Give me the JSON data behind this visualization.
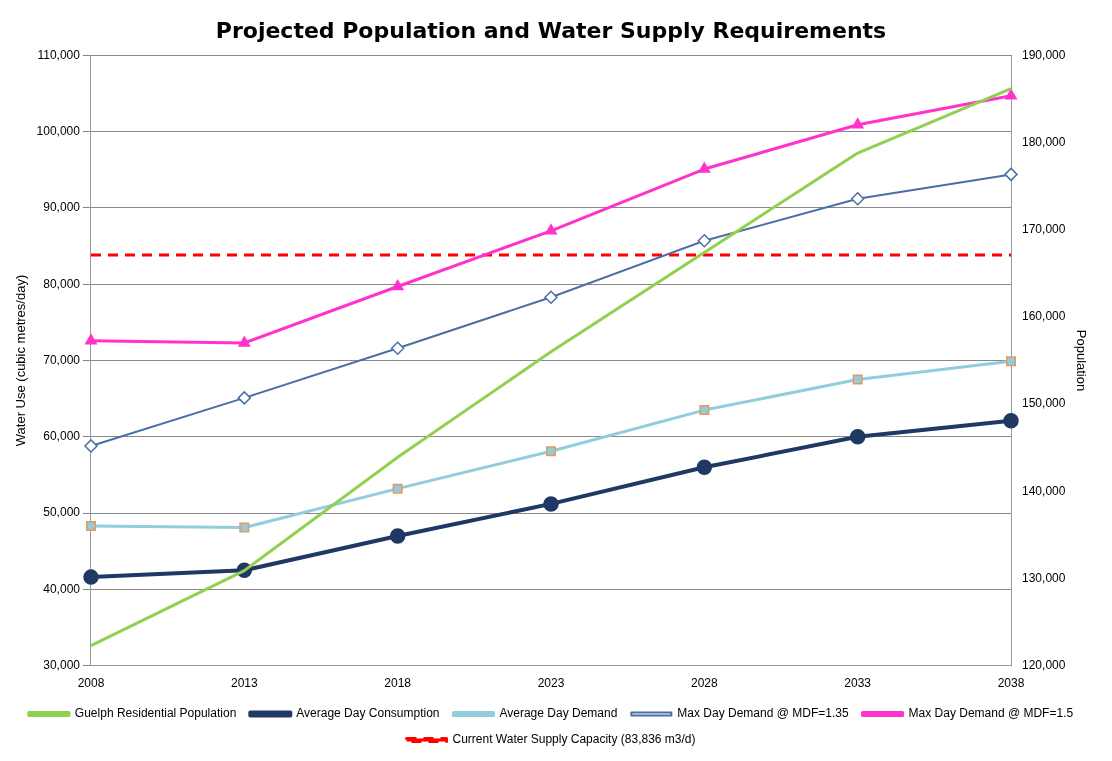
{
  "chart_data": {
    "type": "line",
    "title": "Projected Population and Water Supply Requirements",
    "ylabel": "Water Use (cubic metres/day)",
    "y2label": "Population",
    "categories": [
      "2008",
      "2013",
      "2018",
      "2023",
      "2028",
      "2033",
      "2038"
    ],
    "series": [
      {
        "name": "Average Day Consumption",
        "color": "#1f3864",
        "marker": "circle",
        "values": [
          41600,
          42500,
          47000,
          51200,
          56000,
          60000,
          62100
        ]
      },
      {
        "name": "Average Day Demand",
        "color": "#93cddd",
        "marker": "square",
        "values": [
          48300,
          48100,
          53200,
          58100,
          63500,
          67500,
          69900
        ]
      },
      {
        "name": "Max Day Demand @ MDF=1.35",
        "color": "#4a6fa5",
        "marker": "diamond",
        "values": [
          58800,
          65100,
          71600,
          78300,
          85700,
          91200,
          94400
        ]
      },
      {
        "name": "Max Day Demand @ MDF=1.5",
        "color": "#ff33cc",
        "marker": "triangle",
        "values": [
          72600,
          72300,
          79700,
          87000,
          95100,
          100900,
          104700
        ]
      },
      {
        "name": "Current Water Supply Capacity (83,836 m3/d)",
        "color": "#ff0000",
        "marker": "none",
        "line_style": "dashed",
        "values": [
          83836,
          83836,
          83836,
          83836,
          83836,
          83836,
          83836
        ]
      },
      {
        "name": "Guelph Residential Population",
        "color": "#92d050",
        "marker": "none",
        "axis": "y2",
        "values": [
          122300,
          130900,
          143900,
          156000,
          167400,
          178800,
          186200
        ]
      }
    ],
    "ylim": [
      30000,
      110000
    ],
    "yticks": [
      {
        "value": 30000,
        "label": "30,000"
      },
      {
        "value": 40000,
        "label": "40,000"
      },
      {
        "value": 50000,
        "label": "50,000"
      },
      {
        "value": 60000,
        "label": "60,000"
      },
      {
        "value": 70000,
        "label": "70,000"
      },
      {
        "value": 80000,
        "label": "80,000"
      },
      {
        "value": 90000,
        "label": "90,000"
      },
      {
        "value": 100000,
        "label": "100,000"
      },
      {
        "value": 110000,
        "label": "110,000"
      }
    ],
    "y2lim": [
      120000,
      190000
    ],
    "y2ticks": [
      {
        "value": 120000,
        "label": "120,000"
      },
      {
        "value": 130000,
        "label": "130,000"
      },
      {
        "value": 140000,
        "label": "140,000"
      },
      {
        "value": 150000,
        "label": "150,000"
      },
      {
        "value": 160000,
        "label": "160,000"
      },
      {
        "value": 170000,
        "label": "170,000"
      },
      {
        "value": 180000,
        "label": "180,000"
      },
      {
        "value": 190000,
        "label": "190,000"
      }
    ],
    "grid": "y",
    "legend": "bottom"
  }
}
